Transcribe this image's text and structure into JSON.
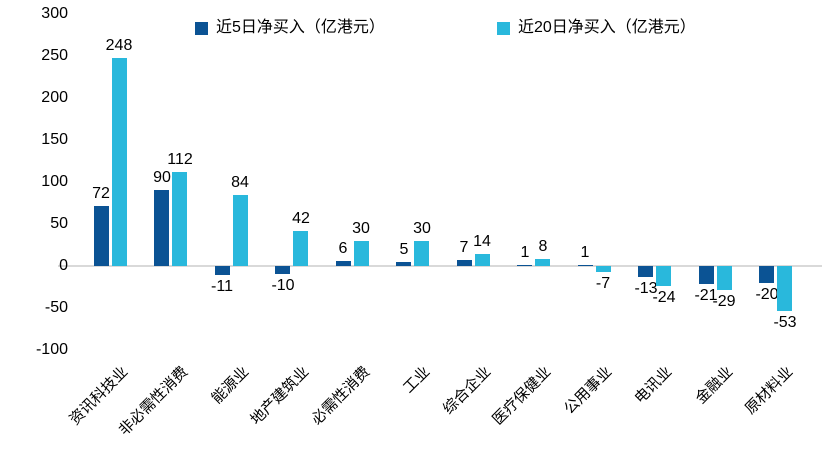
{
  "chart_data": {
    "type": "bar",
    "categories": [
      "资讯科技业",
      "非必需性消费",
      "能源业",
      "地产建筑业",
      "必需性消费",
      "工业",
      "综合企业",
      "医疗保健业",
      "公用事业",
      "电讯业",
      "金融业",
      "原材料业"
    ],
    "series": [
      {
        "name": "近5日净买入（亿港元）",
        "color": "#0b5394",
        "values": [
          72,
          90,
          -11,
          -10,
          6,
          5,
          7,
          1,
          1,
          -13,
          -21,
          -20
        ]
      },
      {
        "name": "近20日净买入（亿港元）",
        "color": "#29b8dc",
        "values": [
          248,
          112,
          84,
          42,
          30,
          30,
          14,
          8,
          -7,
          -24,
          -29,
          -53
        ]
      }
    ],
    "title": "",
    "xlabel": "",
    "ylabel": "",
    "ylim": [
      -100,
      300
    ],
    "yticks": [
      300,
      250,
      200,
      150,
      100,
      50,
      0,
      -50,
      -100
    ],
    "grid": false,
    "legend_position": "top",
    "zero_line_color": "#d9d9d9"
  }
}
